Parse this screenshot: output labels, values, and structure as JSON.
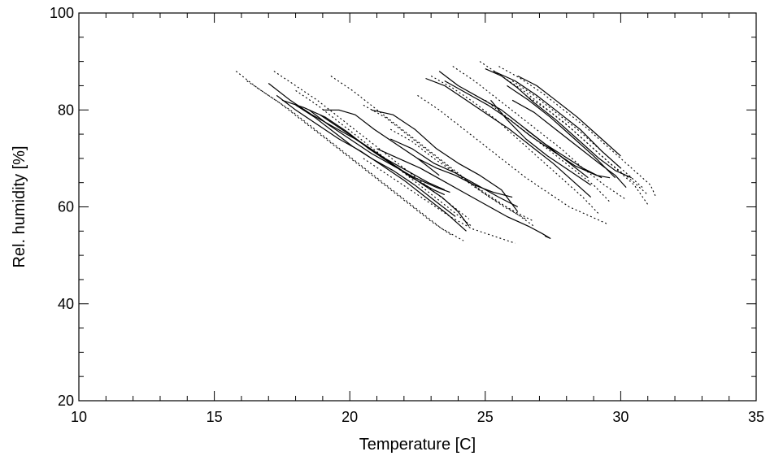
{
  "chart_data": {
    "type": "line",
    "title": "",
    "xlabel": "Temperature [C]",
    "ylabel": "Rel. humidity [%]",
    "xlim": [
      10,
      35
    ],
    "ylim": [
      20,
      100
    ],
    "xticks": [
      10,
      15,
      20,
      25,
      30,
      35
    ],
    "xtick_labels": [
      "10",
      "15",
      "20",
      "25",
      "30",
      "35"
    ],
    "yticks": [
      20,
      40,
      60,
      80,
      100
    ],
    "ytick_labels": [
      "20",
      "40",
      "60",
      "80",
      "100"
    ],
    "grid": false,
    "line_styles": [
      "solid",
      "dotted"
    ],
    "series": [
      {
        "style": "solid",
        "x": [
          17.0,
          17.8,
          18.6,
          19.4,
          20.2,
          21.0,
          21.8,
          22.6,
          23.4,
          24.0,
          24.4
        ],
        "y": [
          85.5,
          82.0,
          79.0,
          76.5,
          74.0,
          71.0,
          68.0,
          65.0,
          62.0,
          59.0,
          56.0
        ]
      },
      {
        "style": "solid",
        "x": [
          17.5,
          18.3,
          19.1,
          19.9,
          20.7,
          21.5,
          22.3,
          23.1,
          23.5
        ],
        "y": [
          82.0,
          80.5,
          78.5,
          75.5,
          72.0,
          69.0,
          66.0,
          63.5,
          62.5
        ]
      },
      {
        "style": "solid",
        "x": [
          17.3,
          18.0,
          18.8,
          19.6,
          20.4,
          21.2,
          22.0,
          22.8,
          23.6,
          24.3
        ],
        "y": [
          83.0,
          80.0,
          77.0,
          74.0,
          71.5,
          68.5,
          65.5,
          62.0,
          58.5,
          55.0
        ]
      },
      {
        "style": "solid",
        "x": [
          18.0,
          18.7,
          19.4,
          20.1,
          20.8,
          21.6,
          22.4,
          23.2,
          23.9
        ],
        "y": [
          81.0,
          78.5,
          75.5,
          72.5,
          70.0,
          67.5,
          64.5,
          61.0,
          58.0
        ]
      },
      {
        "style": "solid",
        "x": [
          18.5,
          19.2,
          20.0,
          20.8,
          21.6,
          22.4,
          23.2,
          23.7
        ],
        "y": [
          80.0,
          77.0,
          74.0,
          71.0,
          68.5,
          66.0,
          64.0,
          63.0
        ]
      },
      {
        "style": "solid",
        "x": [
          18.9,
          19.7,
          20.5,
          21.3,
          22.1,
          22.9,
          23.5
        ],
        "y": [
          79.0,
          76.0,
          73.0,
          70.0,
          67.5,
          65.0,
          63.5
        ]
      },
      {
        "style": "solid",
        "x": [
          19.0,
          19.6,
          20.2,
          20.9,
          21.7,
          22.5,
          23.3
        ],
        "y": [
          80.0,
          80.0,
          79.0,
          76.0,
          73.0,
          70.0,
          66.5
        ]
      },
      {
        "style": "solid",
        "x": [
          20.8,
          21.6,
          22.4,
          23.2,
          24.0,
          24.8,
          25.6,
          26.2
        ],
        "y": [
          80.0,
          79.0,
          76.0,
          72.0,
          69.0,
          66.5,
          63.5,
          59.0
        ]
      },
      {
        "style": "solid",
        "x": [
          21.5,
          22.3,
          23.1,
          23.9,
          24.7,
          25.5,
          26.2
        ],
        "y": [
          74.0,
          72.0,
          69.0,
          67.0,
          64.5,
          62.0,
          60.0
        ]
      },
      {
        "style": "solid",
        "x": [
          21.0,
          21.8,
          22.6,
          23.4,
          24.2,
          25.0,
          25.8,
          26.6,
          27.1,
          27.4,
          27.2
        ],
        "y": [
          72.0,
          70.0,
          68.0,
          65.5,
          63.0,
          60.5,
          58.0,
          56.0,
          54.5,
          53.5,
          54.0
        ]
      },
      {
        "style": "solid",
        "x": [
          22.5,
          23.2,
          23.9,
          24.6,
          25.3,
          26.0
        ],
        "y": [
          70.0,
          68.0,
          66.5,
          64.5,
          63.0,
          62.0
        ]
      },
      {
        "style": "solid",
        "x": [
          22.8,
          23.5,
          24.3,
          25.1,
          25.9,
          26.7,
          27.5,
          28.3,
          28.9
        ],
        "y": [
          86.5,
          85.0,
          82.0,
          79.0,
          76.0,
          72.5,
          69.0,
          65.0,
          62.0
        ]
      },
      {
        "style": "solid",
        "x": [
          23.3,
          24.0,
          24.8,
          25.6,
          26.4,
          27.2,
          28.0,
          28.8
        ],
        "y": [
          88.0,
          85.0,
          82.5,
          80.0,
          76.5,
          73.0,
          69.5,
          66.0
        ]
      },
      {
        "style": "solid",
        "x": [
          23.5,
          24.3,
          25.1,
          25.9,
          26.7,
          27.5,
          28.3,
          29.1,
          29.6
        ],
        "y": [
          86.0,
          83.5,
          81.0,
          78.0,
          74.5,
          71.5,
          68.5,
          66.5,
          66.0
        ]
      },
      {
        "style": "solid",
        "x": [
          25.0,
          25.6,
          26.2,
          26.8,
          27.6,
          28.4,
          29.2,
          29.8,
          30.4
        ],
        "y": [
          88.5,
          87.0,
          84.5,
          81.5,
          78.0,
          74.0,
          70.0,
          67.5,
          66.0
        ]
      },
      {
        "style": "solid",
        "x": [
          25.3,
          26.1,
          26.9,
          27.7,
          28.5,
          29.3,
          30.0
        ],
        "y": [
          88.0,
          86.0,
          83.0,
          79.5,
          76.0,
          71.5,
          68.0
        ]
      },
      {
        "style": "solid",
        "x": [
          26.2,
          26.9,
          27.6,
          28.4,
          29.2,
          30.0
        ],
        "y": [
          87.0,
          85.0,
          82.0,
          78.5,
          74.5,
          70.5
        ]
      },
      {
        "style": "solid",
        "x": [
          25.8,
          26.6,
          27.4,
          28.2,
          29.0,
          29.8
        ],
        "y": [
          85.0,
          82.0,
          78.5,
          74.5,
          70.5,
          66.0
        ]
      },
      {
        "style": "solid",
        "x": [
          26.0,
          26.8,
          27.6,
          28.4,
          29.2,
          29.8,
          30.2
        ],
        "y": [
          82.0,
          79.5,
          76.0,
          72.5,
          69.0,
          66.5,
          64.0
        ]
      },
      {
        "style": "solid",
        "x": [
          25.2,
          25.8,
          26.5,
          27.3,
          28.1,
          28.9
        ],
        "y": [
          82.0,
          78.0,
          74.0,
          70.5,
          67.5,
          64.5
        ]
      },
      {
        "style": "solid",
        "x": [
          26.5,
          27.2,
          27.9,
          28.6,
          29.3
        ],
        "y": [
          76.0,
          73.0,
          70.5,
          68.0,
          66.0
        ]
      },
      {
        "style": "dotted",
        "x": [
          15.8,
          16.6,
          17.4,
          18.2,
          19.0,
          19.8,
          20.6,
          21.4,
          22.2,
          23.0,
          23.8
        ],
        "y": [
          88.0,
          84.5,
          81.5,
          78.0,
          74.5,
          71.0,
          67.5,
          64.0,
          60.5,
          57.0,
          54.0
        ]
      },
      {
        "style": "dotted",
        "x": [
          16.2,
          17.0,
          17.8,
          18.6,
          19.4,
          20.2,
          21.0,
          21.8,
          22.6,
          23.4,
          24.2
        ],
        "y": [
          86.0,
          83.0,
          80.0,
          76.5,
          73.0,
          69.5,
          66.0,
          62.5,
          59.0,
          55.5,
          53.0
        ]
      },
      {
        "style": "dotted",
        "x": [
          17.2,
          18.0,
          18.8,
          19.6,
          20.4,
          21.2,
          22.0,
          22.8,
          23.6,
          24.4
        ],
        "y": [
          88.0,
          85.0,
          82.0,
          78.5,
          75.0,
          71.5,
          68.0,
          64.5,
          61.0,
          57.5
        ]
      },
      {
        "style": "dotted",
        "x": [
          18.0,
          18.8,
          19.6,
          20.4,
          21.2,
          22.0,
          22.8,
          23.6,
          24.5
        ],
        "y": [
          84.0,
          81.0,
          77.5,
          74.0,
          70.5,
          67.0,
          63.5,
          60.0,
          56.0
        ]
      },
      {
        "style": "dotted",
        "x": [
          19.3,
          20.1,
          20.9,
          21.7,
          22.5,
          23.3,
          24.1,
          24.9,
          25.7,
          26.5
        ],
        "y": [
          87.0,
          84.0,
          80.5,
          77.0,
          73.5,
          70.0,
          66.5,
          63.0,
          60.0,
          57.5
        ]
      },
      {
        "style": "dotted",
        "x": [
          20.5,
          21.3,
          22.1,
          22.9,
          23.7,
          24.5,
          25.3,
          26.1,
          26.8
        ],
        "y": [
          81.0,
          78.5,
          75.0,
          71.5,
          68.0,
          64.5,
          61.5,
          59.0,
          57.0
        ]
      },
      {
        "style": "dotted",
        "x": [
          21.5,
          22.3,
          23.1,
          23.9,
          24.7,
          25.5,
          26.3,
          26.8
        ],
        "y": [
          76.0,
          73.5,
          70.0,
          67.0,
          64.0,
          61.0,
          58.0,
          56.0
        ]
      },
      {
        "style": "dotted",
        "x": [
          20.5,
          21.3,
          22.1,
          22.9,
          23.7,
          24.5,
          25.3,
          26.1
        ],
        "y": [
          70.0,
          67.0,
          64.0,
          61.0,
          58.0,
          55.5,
          54.0,
          52.5
        ]
      },
      {
        "style": "dotted",
        "x": [
          22.5,
          23.3,
          24.1,
          24.9,
          25.7,
          26.5,
          27.3,
          28.1,
          28.9,
          29.5
        ],
        "y": [
          83.0,
          80.0,
          76.5,
          73.0,
          69.5,
          66.0,
          63.0,
          60.0,
          58.0,
          56.5
        ]
      },
      {
        "style": "dotted",
        "x": [
          23.0,
          23.8,
          24.6,
          25.4,
          26.2,
          27.0,
          27.8,
          28.6,
          29.2
        ],
        "y": [
          87.0,
          84.5,
          81.5,
          78.0,
          74.0,
          70.0,
          66.0,
          62.0,
          58.5
        ]
      },
      {
        "style": "dotted",
        "x": [
          23.8,
          24.6,
          25.4,
          26.2,
          27.0,
          27.8,
          28.6,
          29.4,
          30.2
        ],
        "y": [
          89.0,
          86.0,
          82.5,
          79.0,
          75.5,
          72.0,
          68.0,
          64.5,
          61.5
        ]
      },
      {
        "style": "dotted",
        "x": [
          24.8,
          25.6,
          26.4,
          27.2,
          28.0,
          28.8,
          29.6,
          30.4,
          31.0
        ],
        "y": [
          90.0,
          87.0,
          84.0,
          80.5,
          77.0,
          73.0,
          69.0,
          65.5,
          62.5
        ]
      },
      {
        "style": "dotted",
        "x": [
          25.5,
          26.3,
          27.1,
          27.9,
          28.7,
          29.5,
          30.3,
          31.1,
          31.3
        ],
        "y": [
          89.0,
          86.5,
          83.5,
          80.0,
          76.5,
          72.5,
          68.5,
          64.5,
          62.0
        ]
      },
      {
        "style": "dotted",
        "x": [
          26.0,
          26.8,
          27.6,
          28.4,
          29.2,
          30.0,
          30.8
        ],
        "y": [
          86.0,
          83.0,
          79.5,
          76.0,
          72.0,
          68.0,
          64.0
        ]
      },
      {
        "style": "dotted",
        "x": [
          26.5,
          27.3,
          28.1,
          28.9,
          29.7,
          30.5,
          31.0
        ],
        "y": [
          83.0,
          80.0,
          76.5,
          72.5,
          68.5,
          64.5,
          60.5
        ]
      },
      {
        "style": "dotted",
        "x": [
          25.0,
          25.8,
          26.6,
          27.4,
          28.2,
          29.0,
          29.6
        ],
        "y": [
          82.0,
          78.5,
          75.0,
          71.5,
          68.0,
          64.5,
          61.0
        ]
      }
    ]
  }
}
